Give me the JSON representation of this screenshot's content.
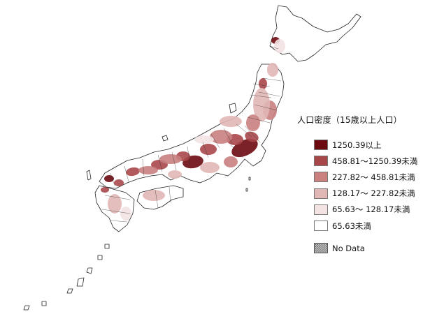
{
  "legend": {
    "title": "人口密度（15歳以上人口）",
    "classes": [
      {
        "label": "1250.39以上",
        "color": "#6b0a10"
      },
      {
        "label": "458.81～1250.39未満",
        "color": "#a8474a"
      },
      {
        "label": "227.82～ 458.81未満",
        "color": "#c9807f"
      },
      {
        "label": "128.17～ 227.82未満",
        "color": "#e1b7b6"
      },
      {
        "label": "65.63～ 128.17未満",
        "color": "#f3e3e3"
      },
      {
        "label": "65.63未満",
        "color": "#ffffff"
      }
    ],
    "no_data_label": "No Data"
  },
  "map": {
    "outline_color": "#222222",
    "islands": [
      "hokkaido-island",
      "honshu-island",
      "shikoku-island",
      "kyushu-island",
      "sado-island",
      "oki-islands",
      "tsushima-island",
      "izu-islands",
      "nansei-islands"
    ]
  }
}
